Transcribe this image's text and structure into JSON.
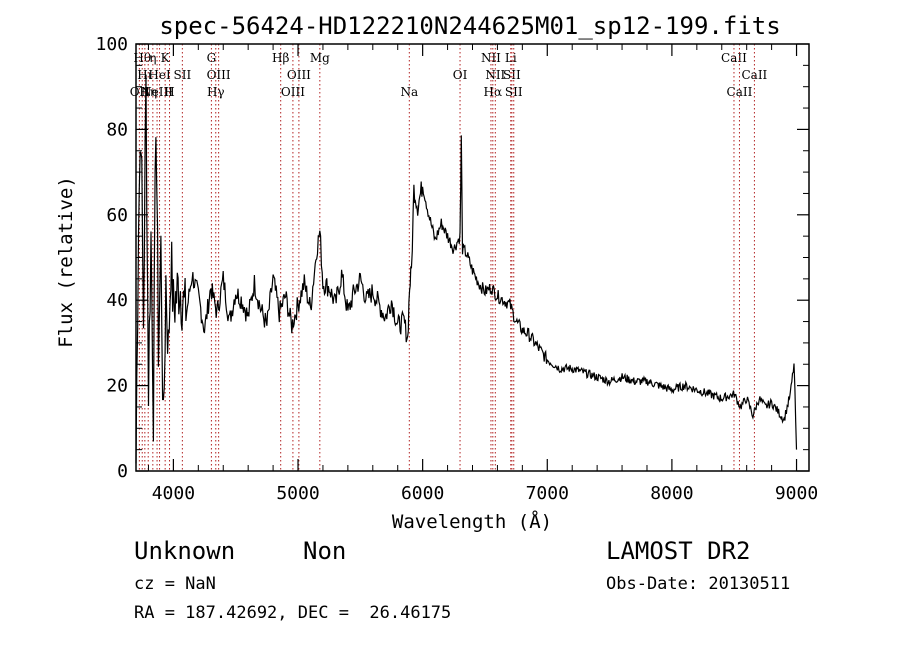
{
  "chart_data": {
    "type": "line",
    "title": "spec-56424-HD122210N244625M01_sp12-199.fits",
    "xlabel": "Wavelength (Å)",
    "ylabel": "Flux (relative)",
    "xlim": [
      3700,
      9100
    ],
    "ylim": [
      0,
      100
    ],
    "xticks": [
      4000,
      5000,
      6000,
      7000,
      8000,
      9000
    ],
    "yticks": [
      0,
      20,
      40,
      60,
      80,
      100
    ],
    "grid": false,
    "series": [
      {
        "x": [
          3700,
          3720,
          3740,
          3760,
          3780,
          3800,
          3820,
          3840,
          3860,
          3880,
          3900,
          3920,
          3940,
          3960,
          3980,
          4000,
          4050,
          4100,
          4150,
          4200,
          4250,
          4300,
          4350,
          4400,
          4450,
          4500,
          4550,
          4600,
          4650,
          4700,
          4750,
          4800,
          4850,
          4900,
          4950,
          5000,
          5050,
          5100,
          5150,
          5175,
          5200,
          5250,
          5300,
          5350,
          5400,
          5450,
          5500,
          5550,
          5600,
          5650,
          5700,
          5750,
          5800,
          5850,
          5880,
          5895,
          5910,
          5930,
          5960,
          6000,
          6050,
          6100,
          6150,
          6200,
          6250,
          6300,
          6310,
          6320,
          6350,
          6400,
          6450,
          6500,
          6550,
          6600,
          6650,
          6700,
          6750,
          6800,
          6850,
          6900,
          6950,
          7000,
          7050,
          7100,
          7200,
          7300,
          7400,
          7500,
          7600,
          7700,
          7800,
          7900,
          8000,
          8100,
          8200,
          8300,
          8400,
          8500,
          8550,
          8600,
          8650,
          8700,
          8750,
          8800,
          8850,
          8900,
          8950,
          8980,
          9000
        ],
        "y": [
          2,
          60,
          82,
          35,
          90,
          20,
          55,
          15,
          85,
          30,
          52,
          8,
          45,
          28,
          50,
          38,
          44,
          36,
          46,
          41,
          33,
          43,
          37,
          45,
          35,
          42,
          40,
          36,
          44,
          38,
          34,
          45,
          37,
          41,
          34,
          39,
          44,
          38,
          52,
          56,
          44,
          43,
          39,
          46,
          37,
          42,
          45,
          40,
          42,
          39,
          36,
          40,
          34,
          35,
          31,
          43,
          47,
          66,
          62,
          67,
          60,
          54,
          58,
          55,
          52,
          55,
          78,
          52,
          51,
          47,
          44,
          42,
          43,
          41,
          40,
          39,
          35,
          33,
          32,
          30,
          28,
          26,
          25,
          24,
          24,
          23,
          22,
          21,
          22,
          21,
          21,
          20,
          19,
          20,
          19,
          18,
          17,
          18,
          15,
          17,
          13,
          17,
          15,
          16,
          14,
          12,
          18,
          25,
          5
        ]
      }
    ],
    "lines": [
      {
        "wavelength": 3727,
        "label": "OII",
        "row": 2
      },
      {
        "wavelength": 3750,
        "label": "Hθ",
        "row": 0
      },
      {
        "wavelength": 3771,
        "label": "Hι",
        "row": 1
      },
      {
        "wavelength": 3798,
        "label": "Hη",
        "row": 2
      },
      {
        "wavelength": 3835,
        "label": "η",
        "row": 0
      },
      {
        "wavelength": 3869,
        "label": "NeIII",
        "row": 2
      },
      {
        "wavelength": 3889,
        "label": "HeI",
        "row": 1
      },
      {
        "wavelength": 3934,
        "label": "K",
        "row": 0
      },
      {
        "wavelength": 3969,
        "label": "H",
        "row": 2
      },
      {
        "wavelength": 4072,
        "label": "SII",
        "row": 1
      },
      {
        "wavelength": 4305,
        "label": "G",
        "row": 0
      },
      {
        "wavelength": 4340,
        "label": "Hγ",
        "row": 2
      },
      {
        "wavelength": 4363,
        "label": "OIII",
        "row": 1
      },
      {
        "wavelength": 4861,
        "label": "Hβ",
        "row": 0
      },
      {
        "wavelength": 4959,
        "label": "OIII",
        "row": 2
      },
      {
        "wavelength": 5007,
        "label": "OIII",
        "row": 1
      },
      {
        "wavelength": 5175,
        "label": "Mg",
        "row": 0
      },
      {
        "wavelength": 5893,
        "label": "Na",
        "row": 2
      },
      {
        "wavelength": 6300,
        "label": "OI",
        "row": 1
      },
      {
        "wavelength": 6548,
        "label": "NII",
        "row": 0
      },
      {
        "wavelength": 6563,
        "label": "Hα",
        "row": 2
      },
      {
        "wavelength": 6583,
        "label": "NII",
        "row": 1
      },
      {
        "wavelength": 6707,
        "label": "Li",
        "row": 0
      },
      {
        "wavelength": 6716,
        "label": "SII",
        "row": 1
      },
      {
        "wavelength": 6731,
        "label": "SII",
        "row": 2
      },
      {
        "wavelength": 8498,
        "label": "CaII",
        "row": 0
      },
      {
        "wavelength": 8542,
        "label": "CaII",
        "row": 2
      },
      {
        "wavelength": 8662,
        "label": "CaII",
        "row": 1
      }
    ]
  },
  "info": {
    "class": "Unknown",
    "subclass": "Non",
    "survey": "LAMOST DR2",
    "cz": "cz = NaN",
    "obs_date": "Obs-Date: 20130511",
    "coords": "RA = 187.42692, DEC =  26.46175"
  }
}
